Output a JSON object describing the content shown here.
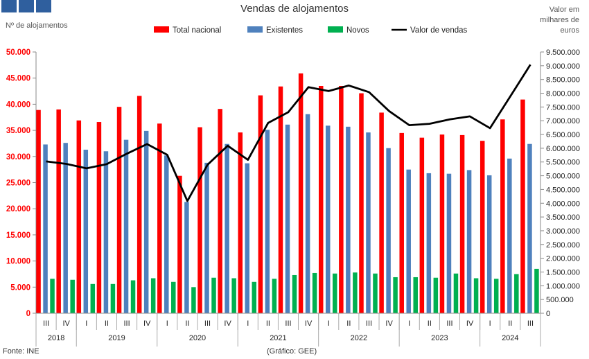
{
  "header": {
    "logo_colors": [
      "#2f5f9e",
      "#2f5f9e",
      "#2f5f9e"
    ]
  },
  "footer": {
    "source": "Fonte: INE",
    "credit": "(Gráfico: GEE)"
  },
  "chart_data": {
    "type": "bar",
    "title": "Vendas de alojamentos",
    "ylabel_left": "Nº de alojamentos",
    "ylabel_right": [
      "Valor em",
      "milhares de",
      "euros"
    ],
    "ylim_left": [
      0,
      50000
    ],
    "ylim_right": [
      0,
      9500000
    ],
    "yticks_left": [
      "0",
      "5.000",
      "10.000",
      "15.000",
      "20.000",
      "25.000",
      "30.000",
      "35.000",
      "40.000",
      "45.000",
      "50.000"
    ],
    "yticks_right": [
      "0",
      "500.000",
      "1.000.000",
      "1.500.000",
      "2.000.000",
      "2.500.000",
      "3.000.000",
      "3.500.000",
      "4.000.000",
      "4.500.000",
      "5.000.000",
      "5.500.000",
      "6.000.000",
      "6.500.000",
      "7.000.000",
      "7.500.000",
      "8.000.000",
      "8.500.000",
      "9.000.000",
      "9.500.000"
    ],
    "legend_position": "top",
    "categories": [
      "III",
      "IV",
      "I",
      "II",
      "III",
      "IV",
      "I",
      "II",
      "III",
      "IV",
      "I",
      "II",
      "III",
      "IV",
      "I",
      "II",
      "III",
      "IV",
      "I",
      "II",
      "III",
      "IV",
      "I",
      "II",
      "III"
    ],
    "years": [
      {
        "label": "2018",
        "count": 2
      },
      {
        "label": "2019",
        "count": 4
      },
      {
        "label": "2020",
        "count": 4
      },
      {
        "label": "2021",
        "count": 4
      },
      {
        "label": "2022",
        "count": 4
      },
      {
        "label": "2023",
        "count": 4
      },
      {
        "label": "2024",
        "count": 3
      }
    ],
    "series": [
      {
        "name": "Total nacional",
        "type": "bar",
        "axis": "left",
        "color": "#ff0000",
        "values": [
          38900,
          39000,
          36900,
          36600,
          39500,
          41600,
          36300,
          26300,
          35600,
          39100,
          34600,
          41700,
          43400,
          45900,
          43500,
          43500,
          42100,
          38400,
          34500,
          33600,
          34200,
          34100,
          33000,
          37100,
          40900
        ]
      },
      {
        "name": "Existentes",
        "type": "bar",
        "axis": "left",
        "color": "#4f81bd",
        "values": [
          32300,
          32600,
          31300,
          31000,
          33200,
          34900,
          30200,
          21300,
          28800,
          32400,
          28700,
          35100,
          36100,
          38100,
          35900,
          35700,
          34600,
          31600,
          27500,
          26800,
          26700,
          27400,
          26400,
          29600,
          32400
        ]
      },
      {
        "name": "Novos",
        "type": "bar",
        "axis": "left",
        "color": "#00b050",
        "values": [
          6600,
          6400,
          5600,
          5600,
          6300,
          6700,
          6000,
          5000,
          6800,
          6700,
          6000,
          6600,
          7300,
          7700,
          7600,
          7800,
          7600,
          6900,
          6900,
          6800,
          7600,
          6700,
          6600,
          7500,
          8500
        ]
      },
      {
        "name": "Valor de vendas",
        "type": "line",
        "axis": "right",
        "color": "#000000",
        "values": [
          5520000,
          5430000,
          5270000,
          5420000,
          5800000,
          6150000,
          5760000,
          4080000,
          5400000,
          6090000,
          5580000,
          6920000,
          7310000,
          8220000,
          8080000,
          8280000,
          8040000,
          7350000,
          6840000,
          6890000,
          7050000,
          7160000,
          6730000,
          7880000,
          9040000
        ]
      }
    ]
  }
}
